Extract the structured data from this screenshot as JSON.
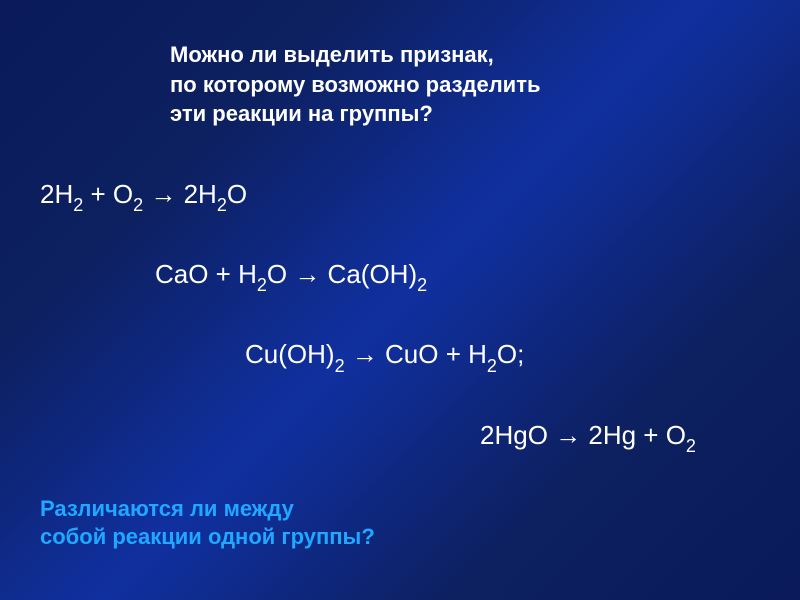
{
  "slide": {
    "bg_gradient": [
      "#0a1a5a",
      "#0d2060",
      "#1030a0",
      "#0d2060",
      "#0a1a5a"
    ],
    "text_color": "#ffffff",
    "accent_color": "#1fa8ff",
    "font_family": "Arial",
    "title_fontsize": 22,
    "equation_fontsize": 26,
    "subscript_fontsize": 18
  },
  "question_top": {
    "line1": "Можно ли выделить признак,",
    "line2": " по которому возможно разделить",
    "line3": " эти реакции на группы?"
  },
  "equations": {
    "eq1": {
      "parts": [
        "2H",
        "2",
        " + O",
        "2",
        " → 2H",
        "2",
        "O"
      ],
      "indent": 0
    },
    "eq2": {
      "parts": [
        "CaO + H",
        "2",
        "O → Ca(OH)",
        "2",
        ""
      ],
      "indent": 115
    },
    "eq3": {
      "parts": [
        "Cu(OH)",
        "2",
        " → CuO + H",
        "2",
        "O;"
      ],
      "indent": 205
    },
    "eq4": {
      "parts": [
        "2HgO → 2Hg + O",
        "2",
        ""
      ],
      "indent": 440
    }
  },
  "question_bottom": {
    "line1": "Различаются ли между",
    "line2": "собой реакции одной группы?"
  }
}
